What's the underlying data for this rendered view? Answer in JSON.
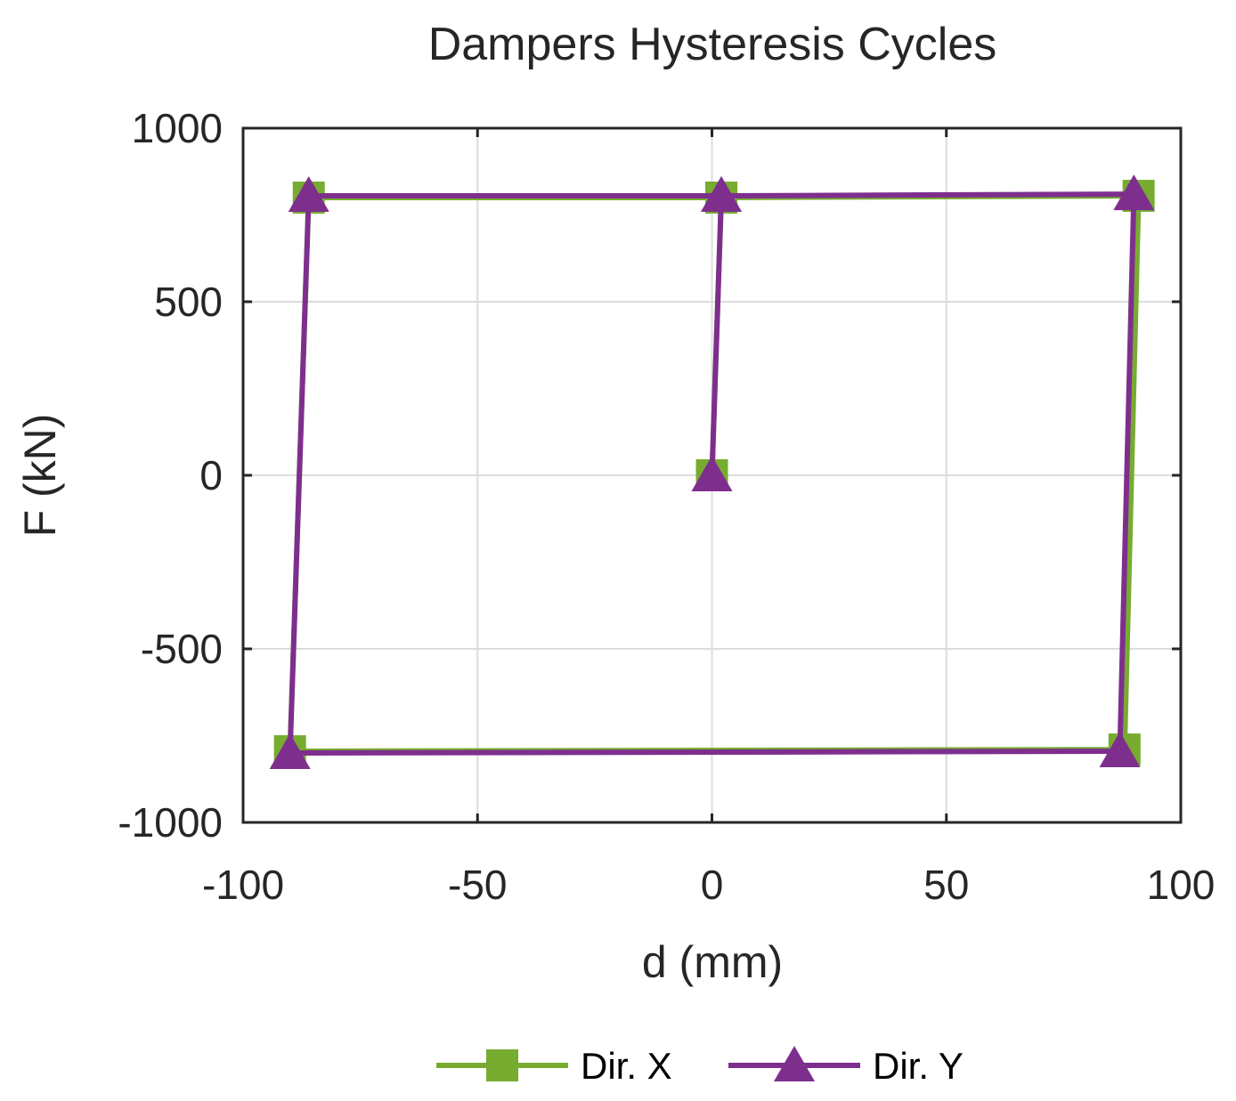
{
  "chart_data": {
    "type": "line",
    "title": "Dampers Hysteresis Cycles",
    "xlabel": "d (mm)",
    "ylabel": "F (kN)",
    "xlim": [
      -100,
      100
    ],
    "ylim": [
      -1000,
      1000
    ],
    "xticks": [
      -100,
      -50,
      0,
      50,
      100
    ],
    "yticks": [
      -1000,
      -500,
      0,
      500,
      1000
    ],
    "xtick_labels": [
      "-100",
      "-50",
      "0",
      "50",
      "100"
    ],
    "ytick_labels": [
      "-1000",
      "-500",
      "0",
      "500",
      "1000"
    ],
    "grid": true,
    "legend_placement": "bottom-outside",
    "series": [
      {
        "name": "Dir. X",
        "color": "#77ac30",
        "marker": "square",
        "x": [
          0,
          2,
          91,
          88,
          -90,
          -86,
          2
        ],
        "y": [
          0,
          800,
          805,
          -790,
          -795,
          800,
          800
        ]
      },
      {
        "name": "Dir. Y",
        "color": "#7e2f8e",
        "marker": "triangle",
        "x": [
          0,
          2,
          90,
          87,
          -90,
          -86,
          2
        ],
        "y": [
          0,
          805,
          810,
          -795,
          -800,
          805,
          805
        ]
      }
    ]
  }
}
